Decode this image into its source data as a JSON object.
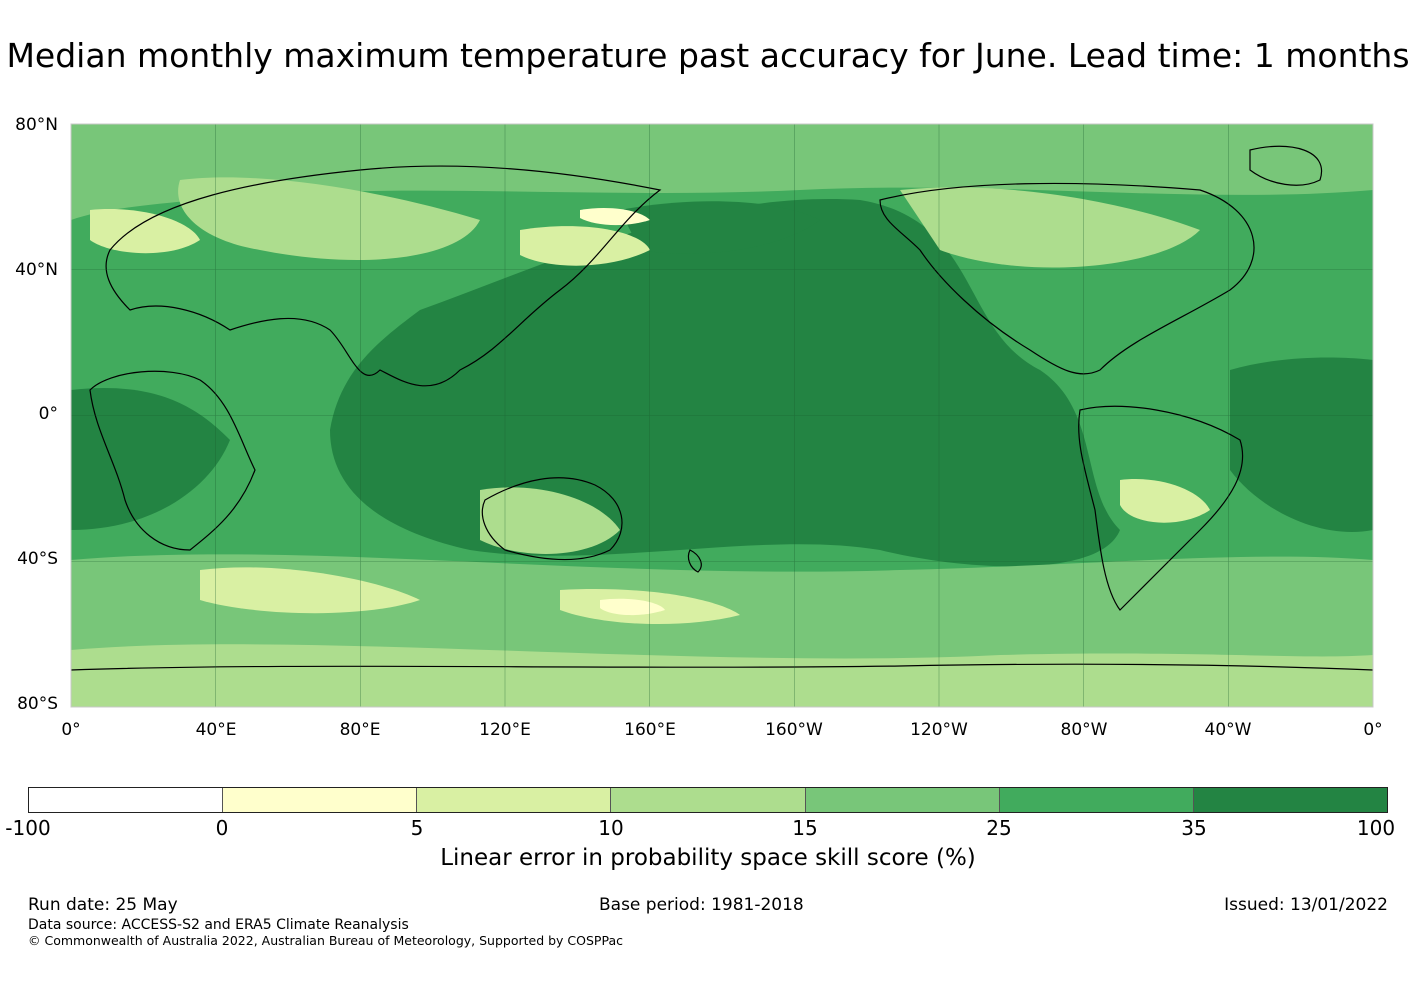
{
  "title": "Median monthly maximum temperature past accuracy for June. Lead time: 1 months",
  "map": {
    "lat_labels": [
      "80°N",
      "40°N",
      "0°",
      "40°S",
      "80°S"
    ],
    "lon_labels": [
      "0°",
      "40°E",
      "80°E",
      "120°E",
      "160°E",
      "160°W",
      "120°W",
      "80°W",
      "40°W",
      "0°"
    ],
    "land_color": "#238b45",
    "grid_color": "#1a5c2e"
  },
  "colorbar": {
    "label": "Linear error in probability space skill score (%)",
    "ticks": [
      "-100",
      "0",
      "5",
      "10",
      "15",
      "25",
      "35",
      "100"
    ],
    "colors": [
      "#ffffff",
      "#ffffcc",
      "#d9f0a3",
      "#addd8e",
      "#78c679",
      "#41ab5d",
      "#238443"
    ]
  },
  "footer": {
    "run_date": "Run date: 25 May",
    "base_period": "Base period: 1981-2018",
    "issued": "Issued: 13/01/2022",
    "data_source": "Data source: ACCESS-S2 and ERA5 Climate Reanalysis",
    "copyright": "© Commonwealth of Australia 2022, Australian Bureau of Meteorology, Supported by COSPPac"
  }
}
